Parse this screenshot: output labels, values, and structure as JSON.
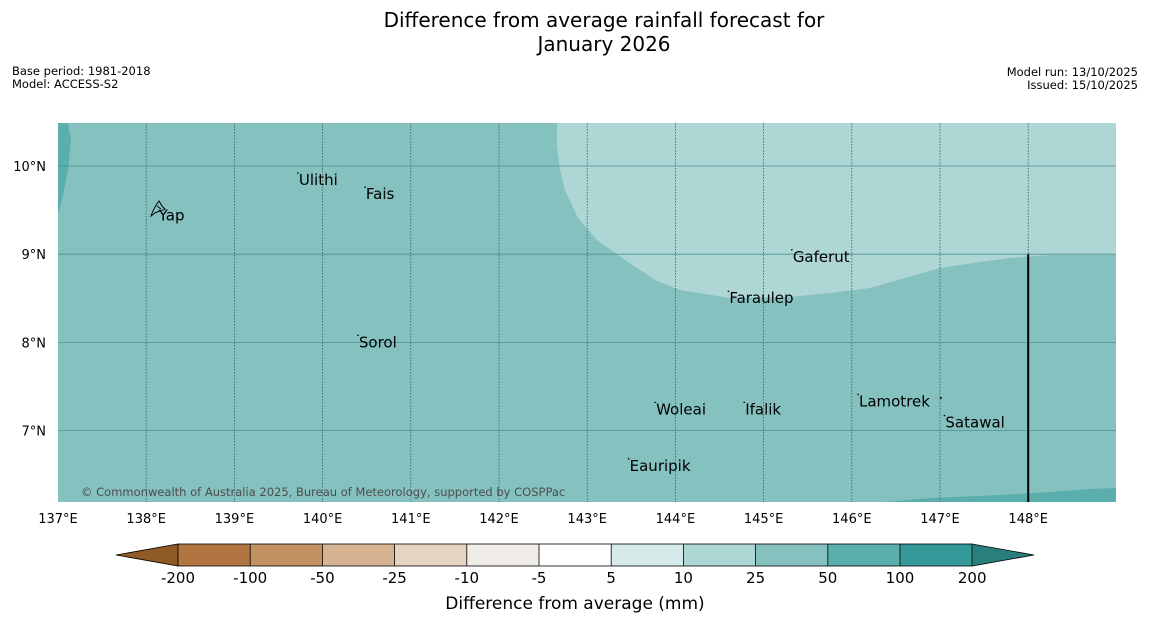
{
  "title": {
    "line1": "Difference from average rainfall forecast for",
    "line2": "January 2026"
  },
  "meta": {
    "base_period": "Base period: 1981-2018",
    "model": "Model: ACCESS-S2",
    "model_run": "Model run: 13/10/2025",
    "issued": "Issued: 15/10/2025"
  },
  "map": {
    "lon_range": [
      137,
      149
    ],
    "lat_range": [
      6.2,
      10.5
    ],
    "lat_ticks": [
      {
        "value": 10,
        "label": "10°N"
      },
      {
        "value": 9,
        "label": "9°N"
      },
      {
        "value": 8,
        "label": "8°N"
      },
      {
        "value": 7,
        "label": "7°N"
      }
    ],
    "lon_ticks": [
      {
        "value": 137,
        "label": "137°E"
      },
      {
        "value": 138,
        "label": "138°E"
      },
      {
        "value": 139,
        "label": "139°E"
      },
      {
        "value": 140,
        "label": "140°E"
      },
      {
        "value": 141,
        "label": "141°E"
      },
      {
        "value": 142,
        "label": "142°E"
      },
      {
        "value": 143,
        "label": "143°E"
      },
      {
        "value": 144,
        "label": "144°E"
      },
      {
        "value": 145,
        "label": "145°E"
      },
      {
        "value": 146,
        "label": "146°E"
      },
      {
        "value": 147,
        "label": "147°E"
      },
      {
        "value": 148,
        "label": "148°E"
      }
    ],
    "boundary_line_lon": 148,
    "places": [
      {
        "name": "Yap",
        "lon": 138.13,
        "lat": 9.52
      },
      {
        "name": "Ulithi",
        "lon": 139.72,
        "lat": 9.92
      },
      {
        "name": "Fais",
        "lon": 140.48,
        "lat": 9.76
      },
      {
        "name": "Gaferut",
        "lon": 145.32,
        "lat": 9.05
      },
      {
        "name": "Faraulep",
        "lon": 144.6,
        "lat": 8.58
      },
      {
        "name": "Sorol",
        "lon": 140.4,
        "lat": 8.08
      },
      {
        "name": "Lamotrek",
        "lon": 146.07,
        "lat": 7.41
      },
      {
        "name": "Woleai",
        "lon": 143.77,
        "lat": 7.32
      },
      {
        "name": "Ifalik",
        "lon": 144.78,
        "lat": 7.32
      },
      {
        "name": "Satawal",
        "lon": 147.05,
        "lat": 7.17
      },
      {
        "name": "Eauripik",
        "lon": 143.47,
        "lat": 6.68
      }
    ],
    "colors": {
      "background_10_25": "#85c1bf",
      "region_5_10": "#aed6d5",
      "region_25_50": "#5aaeab"
    },
    "copyright": "© Commonwealth of Australia 2025, Bureau of Meteorology, supported by COSPPac"
  },
  "colorbar": {
    "labels": [
      "-200",
      "-100",
      "-50",
      "-25",
      "-10",
      "-5",
      "5",
      "10",
      "25",
      "50",
      "100",
      "200"
    ],
    "colors": [
      "#8f5a24",
      "#b07540",
      "#c29263",
      "#d6b391",
      "#e6d3c2",
      "#f0ede8",
      "#ffffff",
      "#d6eae9",
      "#aed6d5",
      "#85c1bf",
      "#5aaeab",
      "#35999a",
      "#2a7f7c"
    ],
    "title": "Difference from average (mm)"
  }
}
